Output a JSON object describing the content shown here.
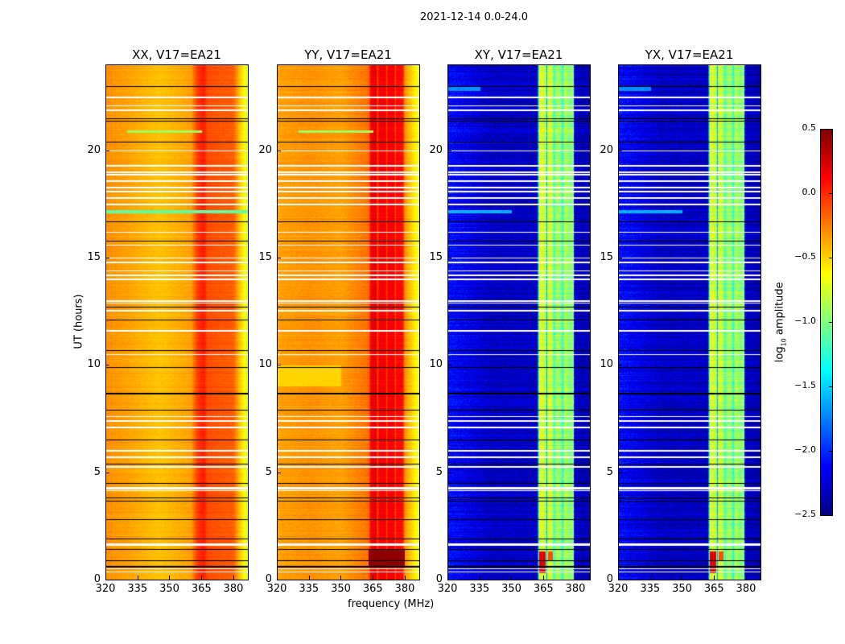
{
  "chart_data": {
    "type": "heatmap",
    "title": "2021-12-14 0.0-24.0",
    "xlabel": "frequency (MHz)",
    "ylabel": "UT (hours)",
    "xlim": [
      320,
      386.8
    ],
    "ylim": [
      0,
      24
    ],
    "xticks": [
      "320",
      "335",
      "350",
      "365",
      "380"
    ],
    "yticks": [
      "0",
      "5",
      "10",
      "15",
      "20"
    ],
    "colorbar": {
      "label": "log10 amplitude",
      "label_main": "log",
      "label_sub": "10",
      "label_rest": " amplitude",
      "range": [
        -2.5,
        0.5
      ],
      "ticks": [
        "0.5",
        "0.0",
        "−0.5",
        "−1.0",
        "−1.5",
        "−2.0",
        "−2.5"
      ],
      "colormap": "jet"
    },
    "flagged_rows_hours": [
      0.35,
      0.5,
      1.6,
      1.65,
      4.15,
      4.25,
      4.3,
      5.25,
      5.7,
      6.0,
      7.1,
      7.4,
      7.6,
      10.5,
      11.6,
      12.55,
      12.9,
      13.0,
      14.0,
      14.2,
      14.4,
      14.8,
      15.0,
      15.6,
      16.2,
      17.5,
      17.8,
      18.1,
      18.3,
      18.6,
      18.9,
      19.0,
      19.3,
      20.0,
      21.9,
      22.1,
      22.5
    ],
    "scan_boundaries_hours": [
      0.6,
      0.9,
      1.4,
      1.9,
      2.8,
      3.65,
      3.8,
      4.5,
      5.4,
      6.5,
      7.9,
      8.65,
      8.7,
      9.9,
      10.7,
      12.1,
      12.7,
      15.8,
      16.7,
      20.4,
      21.4,
      21.5,
      23.0
    ],
    "panels": [
      {
        "title": "XX, V17=EA21",
        "profile": [
          [
            320,
            -0.3
          ],
          [
            330,
            -0.35
          ],
          [
            345,
            -0.45
          ],
          [
            360,
            -0.35
          ],
          [
            363,
            -0.05
          ],
          [
            366,
            0.05
          ],
          [
            368,
            -0.1
          ],
          [
            380,
            -0.15
          ],
          [
            383,
            -0.45
          ],
          [
            386.8,
            -0.75
          ]
        ],
        "noise": 0.07,
        "events": [
          [
            17.1,
            17.25,
            320,
            386.8,
            -1.1
          ],
          [
            20.85,
            20.95,
            330,
            365,
            -0.9
          ]
        ]
      },
      {
        "title": "YY, V17=EA21",
        "profile": [
          [
            320,
            -0.35
          ],
          [
            335,
            -0.3
          ],
          [
            350,
            -0.35
          ],
          [
            363,
            -0.2
          ],
          [
            364,
            0.15
          ],
          [
            366.5,
            0.2
          ],
          [
            367,
            -0.1
          ],
          [
            368,
            0.15
          ],
          [
            371,
            0.15
          ],
          [
            371.5,
            -0.1
          ],
          [
            372,
            0.15
          ],
          [
            375,
            0.15
          ],
          [
            375.5,
            -0.1
          ],
          [
            376,
            0.1
          ],
          [
            379,
            0.1
          ],
          [
            380,
            -0.3
          ],
          [
            386.8,
            -0.7
          ]
        ],
        "noise": 0.08,
        "events": [
          [
            0.6,
            1.4,
            363,
            380,
            0.45
          ],
          [
            9.0,
            10.0,
            320,
            350,
            -0.5
          ],
          [
            20.85,
            20.95,
            330,
            365,
            -0.9
          ]
        ]
      },
      {
        "title": "XY, V17=EA21",
        "profile": [
          [
            320,
            -2.1
          ],
          [
            340,
            -2.3
          ],
          [
            362,
            -2.3
          ],
          [
            363,
            -0.7
          ],
          [
            366,
            -0.8
          ],
          [
            366.5,
            -1.6
          ],
          [
            367,
            -0.7
          ],
          [
            369,
            -0.8
          ],
          [
            370,
            -1.2
          ],
          [
            371,
            -0.9
          ],
          [
            373,
            -0.9
          ],
          [
            374,
            -1.3
          ],
          [
            375,
            -0.8
          ],
          [
            377,
            -1.0
          ],
          [
            379,
            -0.9
          ],
          [
            379.5,
            -2.3
          ],
          [
            386.8,
            -2.35
          ]
        ],
        "noise": 0.25,
        "events": [
          [
            0.3,
            1.3,
            363,
            366,
            0.2
          ],
          [
            0.9,
            1.3,
            367,
            369.5,
            -0.1
          ],
          [
            17.1,
            17.25,
            320,
            350,
            -1.6
          ],
          [
            22.8,
            23.0,
            320,
            335,
            -1.7
          ]
        ]
      },
      {
        "title": "YX, V17=EA21",
        "profile": [
          [
            320,
            -2.1
          ],
          [
            340,
            -2.3
          ],
          [
            362,
            -2.3
          ],
          [
            363,
            -0.7
          ],
          [
            366,
            -0.8
          ],
          [
            366.5,
            -1.6
          ],
          [
            367,
            -0.7
          ],
          [
            369,
            -0.8
          ],
          [
            370,
            -1.2
          ],
          [
            371,
            -0.9
          ],
          [
            373,
            -0.9
          ],
          [
            374,
            -1.3
          ],
          [
            375,
            -0.8
          ],
          [
            377,
            -1.0
          ],
          [
            379,
            -0.9
          ],
          [
            379.5,
            -2.3
          ],
          [
            386.8,
            -2.35
          ]
        ],
        "noise": 0.25,
        "events": [
          [
            0.3,
            1.3,
            363,
            366,
            0.2
          ],
          [
            0.9,
            1.3,
            367,
            369.5,
            -0.1
          ],
          [
            17.1,
            17.25,
            320,
            350,
            -1.6
          ],
          [
            22.8,
            23.0,
            320,
            335,
            -1.7
          ]
        ]
      }
    ]
  }
}
